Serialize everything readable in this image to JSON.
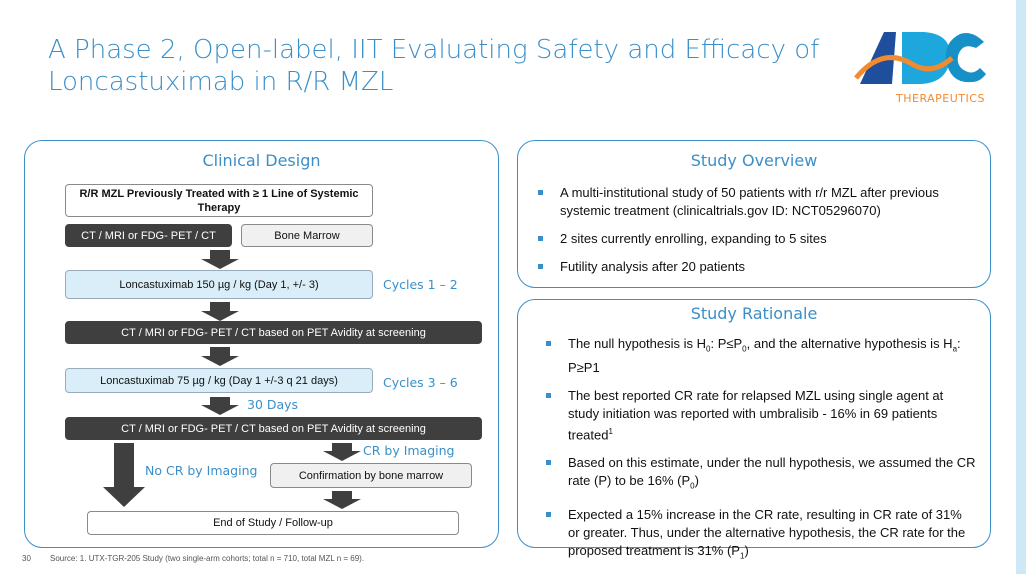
{
  "title": {
    "line1": "A Phase 2, Open-label, IIT Evaluating Safety and Efficacy of",
    "line2": "Loncastuximab in R/R MZL"
  },
  "logo": {
    "text": "ADC",
    "subtext": "THERAPEUTICS",
    "colors": [
      "#1f4e9c",
      "#1ea7dc",
      "#f28a30"
    ]
  },
  "clinical_design": {
    "title": "Clinical Design",
    "population": "R/R MZL Previously Treated with ≥ 1 Line of Systemic Therapy",
    "imaging": "CT / MRI or FDG- PET / CT",
    "bone_marrow": "Bone Marrow",
    "dose1": "Loncastuximab 150 µg / kg (Day 1, +/- 3)",
    "cycles1": "Cycles 1 – 2",
    "scan1": "CT / MRI or FDG- PET / CT based on PET Avidity at screening",
    "dose2": "Loncastuximab 75 µg / kg (Day 1 +/-3 q 21 days)",
    "cycles2": "Cycles 3 – 6",
    "days": "30 Days",
    "scan2": "CT / MRI or FDG- PET / CT based on PET Avidity at screening",
    "cr": "CR by Imaging",
    "no_cr": "No CR by Imaging",
    "confirm": "Confirmation by bone marrow",
    "end": "End of Study / Follow-up"
  },
  "overview": {
    "title": "Study Overview",
    "items": [
      "A multi-institutional study of 50 patients with r/r MZL after previous systemic treatment (clinicaltrials.gov ID: NCT05296070)",
      "2 sites currently enrolling, expanding to 5 sites",
      "Futility analysis after 20 patients"
    ]
  },
  "rationale": {
    "title": "Study Rationale",
    "items": [
      {
        "a": "The null hypothesis is H",
        "s1": "0",
        "b": ": P≤P",
        "s2": "0",
        "c": ", and the alternative hypothesis is H",
        "s3": "a",
        "d": ": P≥P1"
      },
      {
        "a": "The best reported CR rate for relapsed MZL using single agent at study initiation was reported with umbralisib - 16% in 69 patients treated",
        "sup": "1"
      },
      {
        "a": "Based on this estimate, under the null hypothesis, we assumed the CR rate (P) to be 16% (P",
        "s1": "0",
        "b": ")"
      },
      {
        "a": "Expected a 15% increase in the CR rate, resulting in CR rate of 31% or greater. Thus, under the alternative hypothesis, the CR rate for the proposed treatment is 31% (P",
        "s1": "1",
        "b": ")"
      }
    ]
  },
  "footer": {
    "page": "30",
    "source": "Source: 1. UTX-TGR-205 Study (two single-arm cohorts; total n = 710, total MZL n = 69)."
  }
}
